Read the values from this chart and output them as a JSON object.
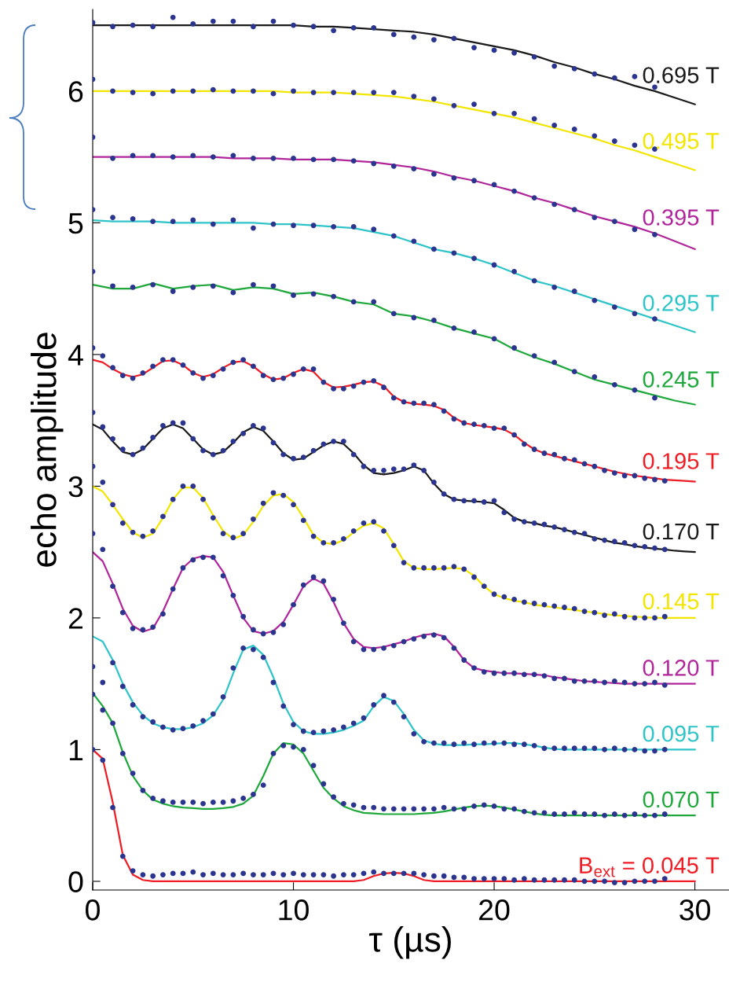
{
  "chart_data": {
    "type": "line",
    "xlabel": "τ (µs)",
    "ylabel": "echo amplitude",
    "xlim": [
      0,
      31.7
    ],
    "ylim": [
      -0.066,
      6.62
    ],
    "xticks": [
      0,
      10,
      20,
      30
    ],
    "yticks": [
      0,
      1,
      2,
      3,
      4,
      5,
      6
    ],
    "grid": false,
    "series": [
      {
        "name": "B$_{ext}$ = 0.045 T",
        "color": "#ee1c24",
        "x": [
          0,
          0.5,
          1,
          1.5,
          2,
          2.5,
          3,
          3.5,
          4,
          4.5,
          5,
          5.5,
          6,
          6.5,
          7,
          7.5,
          8,
          8.5,
          9,
          9.5,
          10,
          10.5,
          11,
          11.5,
          12,
          12.5,
          13,
          13.5,
          14,
          14.5,
          15,
          15.5,
          16,
          16.5,
          17,
          17.5,
          18,
          18.5,
          19,
          19.5,
          20,
          20.5,
          21,
          21.5,
          22,
          22.5,
          23,
          23.5,
          24,
          24.5,
          25,
          25.5,
          26,
          26.5,
          27,
          27.5,
          28,
          28.5,
          29,
          29.5,
          30
        ],
        "values": [
          1.0,
          0.93,
          0.6,
          0.2,
          0.05,
          0.01,
          0,
          0,
          0,
          0,
          0,
          0,
          0,
          0,
          0,
          0,
          0,
          0,
          0,
          0,
          0,
          0,
          0,
          0,
          0,
          0,
          0,
          0.01,
          0.04,
          0.06,
          0.065,
          0.06,
          0.04,
          0.01,
          0,
          0,
          0,
          0,
          0,
          0,
          0,
          0,
          0,
          0,
          0,
          0,
          0,
          0,
          0,
          0,
          0,
          0,
          0,
          0,
          0,
          0,
          0,
          0,
          0,
          0,
          0
        ]
      },
      {
        "type": "scatter",
        "marker": "circle",
        "color": "#2b3590",
        "x": [
          0,
          0.5,
          1,
          1.5,
          2,
          2.5,
          3,
          3.5,
          4,
          4.5,
          5,
          5.5,
          6,
          6.5,
          7,
          7.5,
          8,
          8.5,
          9,
          9.5,
          10,
          10.5,
          11,
          11.5,
          12,
          12.5,
          13,
          13.5,
          14,
          14.5,
          15,
          15.5,
          16,
          16.5,
          17,
          17.5,
          18,
          18.5,
          19,
          19.5,
          20,
          20.5,
          21,
          21.5,
          22,
          22.5,
          23,
          23.5,
          24,
          24.5,
          25,
          25.5,
          26,
          26.5,
          27,
          27.5,
          28,
          28.5
        ],
        "values": [
          1.0,
          0.92,
          0.56,
          0.19,
          0.08,
          0.05,
          0.04,
          0.05,
          0.06,
          0.06,
          0.07,
          0.05,
          0.06,
          0.05,
          0.05,
          0.06,
          0.05,
          0.05,
          0.06,
          0.05,
          0.06,
          0.05,
          0.05,
          0.05,
          0.04,
          0.05,
          0.05,
          0.06,
          0.07,
          0.06,
          0.06,
          0.06,
          0.06,
          0.05,
          0.04,
          0.04,
          0.03,
          0.03,
          0.02,
          0.02,
          0.02,
          0.02,
          0.01,
          0.02,
          0.01,
          0.01,
          0.01,
          0.01,
          0.01,
          0.0,
          0.0,
          0.0,
          -0.01,
          -0.01,
          0.0,
          0.0,
          0.0,
          0.02
        ]
      },
      {
        "name": "0.070 T",
        "color": "#1ea83c",
        "x": [
          0,
          0.5,
          1,
          1.5,
          2,
          2.5,
          3,
          3.5,
          4,
          4.5,
          5,
          5.5,
          6,
          6.5,
          7,
          7.5,
          8,
          8.5,
          9,
          9.5,
          10,
          10.5,
          11,
          11.5,
          12,
          12.5,
          13,
          13.5,
          14,
          14.5,
          15,
          15.5,
          16,
          16.5,
          17,
          17.5,
          18,
          18.5,
          19,
          19.5,
          20,
          20.5,
          21,
          21.5,
          22,
          22.5,
          23,
          23.5,
          24,
          24.5,
          25,
          25.5,
          26,
          26.5,
          27,
          27.5,
          28,
          28.5,
          29,
          29.5,
          30
        ],
        "values": [
          1.43,
          1.33,
          1.2,
          0.98,
          0.8,
          0.69,
          0.62,
          0.59,
          0.57,
          0.56,
          0.555,
          0.55,
          0.55,
          0.555,
          0.565,
          0.59,
          0.65,
          0.8,
          0.97,
          1.05,
          1.04,
          0.97,
          0.84,
          0.71,
          0.63,
          0.57,
          0.54,
          0.52,
          0.515,
          0.51,
          0.51,
          0.51,
          0.51,
          0.515,
          0.52,
          0.53,
          0.545,
          0.56,
          0.57,
          0.575,
          0.57,
          0.56,
          0.545,
          0.53,
          0.515,
          0.505,
          0.5,
          0.5,
          0.5,
          0.5,
          0.5,
          0.5,
          0.5,
          0.5,
          0.5,
          0.5,
          0.5,
          0.5,
          0.5,
          0.5,
          0.5
        ]
      },
      {
        "type": "scatter",
        "marker": "circle",
        "color": "#2b3590",
        "x": [
          0,
          0.5,
          1,
          1.5,
          2,
          2.5,
          3,
          3.5,
          4,
          4.5,
          5,
          5.5,
          6,
          6.5,
          7,
          7.5,
          8,
          8.5,
          9,
          9.5,
          10,
          10.5,
          11,
          11.5,
          12,
          12.5,
          13,
          13.5,
          14,
          14.5,
          15,
          15.5,
          16,
          16.5,
          17,
          17.5,
          18,
          18.5,
          19,
          19.5,
          20,
          20.5,
          21,
          21.5,
          22,
          22.5,
          23,
          23.5,
          24,
          24.5,
          25,
          25.5,
          26,
          26.5,
          27,
          27.5,
          28,
          28.5
        ],
        "values": [
          1.42,
          1.3,
          1.2,
          0.97,
          0.82,
          0.69,
          0.63,
          0.61,
          0.6,
          0.6,
          0.6,
          0.59,
          0.6,
          0.6,
          0.61,
          0.63,
          0.66,
          0.73,
          0.97,
          1.03,
          1.02,
          1.0,
          0.88,
          0.74,
          0.64,
          0.59,
          0.58,
          0.56,
          0.56,
          0.55,
          0.55,
          0.55,
          0.55,
          0.55,
          0.55,
          0.56,
          0.55,
          0.55,
          0.57,
          0.58,
          0.57,
          0.55,
          0.55,
          0.53,
          0.52,
          0.52,
          0.51,
          0.51,
          0.52,
          0.51,
          0.51,
          0.5,
          0.51,
          0.5,
          0.51,
          0.5,
          0.5,
          0.51
        ]
      },
      {
        "name": "0.095 T",
        "color": "#2ec4c8",
        "x": [
          0,
          0.5,
          1,
          1.5,
          2,
          2.5,
          3,
          3.5,
          4,
          4.5,
          5,
          5.5,
          6,
          6.5,
          7,
          7.5,
          8,
          8.5,
          9,
          9.5,
          10,
          10.5,
          11,
          11.5,
          12,
          12.5,
          13,
          13.5,
          14,
          14.5,
          15,
          15.5,
          16,
          16.5,
          17,
          17.5,
          18,
          18.5,
          19,
          19.5,
          20,
          20.5,
          21,
          21.5,
          22,
          22.5,
          23,
          23.5,
          24,
          24.5,
          25,
          25.5,
          26,
          26.5,
          27,
          27.5,
          28,
          28.5,
          29,
          29.5,
          30
        ],
        "values": [
          1.86,
          1.82,
          1.68,
          1.5,
          1.36,
          1.26,
          1.2,
          1.17,
          1.155,
          1.155,
          1.17,
          1.2,
          1.26,
          1.38,
          1.58,
          1.76,
          1.79,
          1.72,
          1.55,
          1.35,
          1.21,
          1.14,
          1.12,
          1.12,
          1.13,
          1.15,
          1.18,
          1.22,
          1.33,
          1.4,
          1.37,
          1.27,
          1.15,
          1.07,
          1.045,
          1.035,
          1.035,
          1.035,
          1.04,
          1.04,
          1.045,
          1.05,
          1.05,
          1.04,
          1.03,
          1.015,
          1.005,
          1.0,
          1.0,
          1.0,
          1.0,
          1.0,
          1.0,
          1.0,
          1.0,
          1.0,
          1.0,
          1.0,
          1.0,
          1.0,
          1.0
        ]
      },
      {
        "type": "scatter",
        "marker": "circle",
        "color": "#2b3590",
        "x": [
          0,
          0.5,
          1,
          1.5,
          2,
          2.5,
          3,
          3.5,
          4,
          4.5,
          5,
          5.5,
          6,
          6.5,
          7,
          7.5,
          8,
          8.5,
          9,
          9.5,
          10,
          10.5,
          11,
          11.5,
          12,
          12.5,
          13,
          13.5,
          14,
          14.5,
          15,
          15.5,
          16,
          16.5,
          17,
          17.5,
          18,
          18.5,
          19,
          19.5,
          20,
          20.5,
          21,
          21.5,
          22,
          22.5,
          23,
          23.5,
          24,
          24.5,
          25,
          25.5,
          26,
          26.5,
          27,
          27.5,
          28,
          28.5
        ],
        "values": [
          1.63,
          1.51,
          1.66,
          1.48,
          1.34,
          1.25,
          1.21,
          1.17,
          1.15,
          1.16,
          1.18,
          1.22,
          1.27,
          1.4,
          1.62,
          1.77,
          1.76,
          1.7,
          1.51,
          1.33,
          1.19,
          1.14,
          1.13,
          1.14,
          1.15,
          1.17,
          1.2,
          1.24,
          1.34,
          1.41,
          1.36,
          1.25,
          1.12,
          1.06,
          1.05,
          1.05,
          1.04,
          1.05,
          1.04,
          1.05,
          1.05,
          1.05,
          1.04,
          1.04,
          1.03,
          1.01,
          1.01,
          1.01,
          1.01,
          1.01,
          1.01,
          1.0,
          1.01,
          1.0,
          1.0,
          0.99,
          0.99,
          1.0
        ]
      },
      {
        "name": "0.120 T",
        "color": "#b0259a",
        "x": [
          0,
          0.5,
          1,
          1.5,
          2,
          2.5,
          3,
          3.5,
          4,
          4.5,
          5,
          5.5,
          6,
          6.5,
          7,
          7.5,
          8,
          8.5,
          9,
          9.5,
          10,
          10.5,
          11,
          11.5,
          12,
          12.5,
          13,
          13.5,
          14,
          14.5,
          15,
          15.5,
          16,
          16.5,
          17,
          17.5,
          18,
          18.5,
          19,
          19.5,
          20,
          20.5,
          21,
          21.5,
          22,
          22.5,
          23,
          23.5,
          24,
          24.5,
          25,
          25.5,
          26,
          26.5,
          27,
          27.5,
          28,
          28.5,
          29,
          29.5,
          30
        ],
        "values": [
          2.5,
          2.43,
          2.26,
          2.07,
          1.94,
          1.895,
          1.92,
          2.05,
          2.22,
          2.38,
          2.45,
          2.47,
          2.46,
          2.35,
          2.17,
          2.0,
          1.9,
          1.88,
          1.9,
          1.97,
          2.1,
          2.24,
          2.3,
          2.26,
          2.12,
          1.96,
          1.84,
          1.78,
          1.77,
          1.78,
          1.8,
          1.82,
          1.85,
          1.87,
          1.88,
          1.86,
          1.78,
          1.68,
          1.62,
          1.6,
          1.59,
          1.58,
          1.58,
          1.575,
          1.57,
          1.565,
          1.55,
          1.54,
          1.53,
          1.52,
          1.515,
          1.51,
          1.505,
          1.5,
          1.5,
          1.5,
          1.5,
          1.5,
          1.5,
          1.5,
          1.5
        ]
      },
      {
        "type": "scatter",
        "marker": "circle",
        "color": "#2b3590",
        "x": [
          0,
          0.5,
          1,
          1.5,
          2,
          2.5,
          3,
          3.5,
          4,
          4.5,
          5,
          5.5,
          6,
          6.5,
          7,
          7.5,
          8,
          8.5,
          9,
          9.5,
          10,
          10.5,
          11,
          11.5,
          12,
          12.5,
          13,
          13.5,
          14,
          14.5,
          15,
          15.5,
          16,
          16.5,
          17,
          17.5,
          18,
          18.5,
          19,
          19.5,
          20,
          20.5,
          21,
          21.5,
          22,
          22.5,
          23,
          23.5,
          24,
          24.5,
          25,
          25.5,
          26,
          26.5,
          27,
          27.5,
          28,
          28.5
        ],
        "values": [
          2.64,
          2.52,
          2.24,
          2.04,
          1.92,
          1.91,
          1.93,
          2.03,
          2.22,
          2.38,
          2.44,
          2.46,
          2.46,
          2.32,
          2.17,
          2.01,
          1.91,
          1.88,
          1.89,
          1.95,
          2.1,
          2.25,
          2.31,
          2.28,
          2.14,
          1.96,
          1.82,
          1.76,
          1.76,
          1.77,
          1.79,
          1.82,
          1.84,
          1.86,
          1.87,
          1.85,
          1.77,
          1.68,
          1.62,
          1.59,
          1.58,
          1.58,
          1.58,
          1.57,
          1.57,
          1.56,
          1.54,
          1.54,
          1.52,
          1.52,
          1.52,
          1.51,
          1.52,
          1.51,
          1.5,
          1.5,
          1.51,
          1.49
        ]
      },
      {
        "name": "0.145 T",
        "color": "#f2e600",
        "x": [
          0,
          0.5,
          1,
          1.5,
          2,
          2.5,
          3,
          3.5,
          4,
          4.5,
          5,
          5.5,
          6,
          6.5,
          7,
          7.5,
          8,
          8.5,
          9,
          9.5,
          10,
          10.5,
          11,
          11.5,
          12,
          12.5,
          13,
          13.5,
          14,
          14.5,
          15,
          15.5,
          16,
          16.5,
          17,
          17.5,
          18,
          18.5,
          19,
          19.5,
          20,
          20.5,
          21,
          21.5,
          22,
          22.5,
          23,
          23.5,
          24,
          24.5,
          25,
          25.5,
          26,
          26.5,
          27,
          27.5,
          28,
          28.5,
          29,
          29.5,
          30
        ],
        "values": [
          3.0,
          2.96,
          2.86,
          2.75,
          2.65,
          2.61,
          2.64,
          2.76,
          2.9,
          2.99,
          2.99,
          2.91,
          2.78,
          2.66,
          2.6,
          2.63,
          2.73,
          2.85,
          2.93,
          2.94,
          2.88,
          2.76,
          2.63,
          2.57,
          2.56,
          2.59,
          2.65,
          2.7,
          2.72,
          2.68,
          2.56,
          2.43,
          2.38,
          2.37,
          2.37,
          2.375,
          2.38,
          2.37,
          2.32,
          2.24,
          2.18,
          2.15,
          2.13,
          2.12,
          2.1,
          2.09,
          2.08,
          2.07,
          2.06,
          2.05,
          2.04,
          2.03,
          2.02,
          2.015,
          2.01,
          2.005,
          2.0,
          2.0,
          2.0,
          2.0,
          2.0
        ]
      },
      {
        "type": "scatter",
        "marker": "circle",
        "color": "#2b3590",
        "x": [
          0,
          0.5,
          1,
          1.5,
          2,
          2.5,
          3,
          3.5,
          4,
          4.5,
          5,
          5.5,
          6,
          6.5,
          7,
          7.5,
          8,
          8.5,
          9,
          9.5,
          10,
          10.5,
          11,
          11.5,
          12,
          12.5,
          13,
          13.5,
          14,
          14.5,
          15,
          15.5,
          16,
          16.5,
          17,
          17.5,
          18,
          18.5,
          19,
          19.5,
          20,
          20.5,
          21,
          21.5,
          22,
          22.5,
          23,
          23.5,
          24,
          24.5,
          25,
          25.5,
          26,
          26.5,
          27,
          27.5,
          28,
          28.5
        ],
        "values": [
          3.15,
          3.03,
          2.86,
          2.72,
          2.65,
          2.62,
          2.66,
          2.77,
          2.9,
          3.0,
          3.0,
          2.9,
          2.76,
          2.64,
          2.61,
          2.64,
          2.75,
          2.87,
          2.95,
          2.93,
          2.86,
          2.74,
          2.62,
          2.57,
          2.57,
          2.6,
          2.66,
          2.72,
          2.73,
          2.66,
          2.55,
          2.42,
          2.38,
          2.38,
          2.38,
          2.38,
          2.39,
          2.37,
          2.31,
          2.24,
          2.18,
          2.16,
          2.14,
          2.12,
          2.11,
          2.1,
          2.09,
          2.08,
          2.07,
          2.05,
          2.04,
          2.02,
          2.03,
          2.01,
          2.0,
          2.0,
          2.0,
          2.01
        ]
      },
      {
        "name": "0.170 T",
        "color": "#1a1a1a",
        "x": [
          0,
          0.5,
          1,
          1.5,
          2,
          2.5,
          3,
          3.5,
          4,
          4.5,
          5,
          5.5,
          6,
          6.5,
          7,
          7.5,
          8,
          8.5,
          9,
          9.5,
          10,
          10.5,
          11,
          11.5,
          12,
          12.5,
          13,
          13.5,
          14,
          14.5,
          15,
          15.5,
          16,
          16.5,
          17,
          17.5,
          18,
          18.5,
          19,
          19.5,
          20,
          20.5,
          21,
          21.5,
          22,
          22.5,
          23,
          23.5,
          24,
          24.5,
          25,
          25.5,
          26,
          26.5,
          27,
          27.5,
          28,
          28.5,
          29,
          29.5,
          30
        ],
        "values": [
          3.47,
          3.43,
          3.34,
          3.26,
          3.24,
          3.28,
          3.36,
          3.44,
          3.47,
          3.44,
          3.36,
          3.28,
          3.24,
          3.26,
          3.33,
          3.41,
          3.45,
          3.42,
          3.34,
          3.25,
          3.2,
          3.21,
          3.26,
          3.31,
          3.34,
          3.32,
          3.25,
          3.16,
          3.1,
          3.09,
          3.1,
          3.12,
          3.15,
          3.12,
          3.02,
          2.94,
          2.9,
          2.89,
          2.885,
          2.88,
          2.87,
          2.82,
          2.76,
          2.73,
          2.72,
          2.7,
          2.69,
          2.67,
          2.65,
          2.63,
          2.61,
          2.59,
          2.57,
          2.56,
          2.545,
          2.535,
          2.525,
          2.52,
          2.51,
          2.505,
          2.5
        ]
      },
      {
        "type": "scatter",
        "marker": "circle",
        "color": "#2b3590",
        "x": [
          0,
          0.5,
          1,
          1.5,
          2,
          2.5,
          3,
          3.5,
          4,
          4.5,
          5,
          5.5,
          6,
          6.5,
          7,
          7.5,
          8,
          8.5,
          9,
          9.5,
          10,
          10.5,
          11,
          11.5,
          12,
          12.5,
          13,
          13.5,
          14,
          14.5,
          15,
          15.5,
          16,
          16.5,
          17,
          17.5,
          18,
          18.5,
          19,
          19.5,
          20,
          20.5,
          21,
          21.5,
          22,
          22.5,
          23,
          23.5,
          24,
          24.5,
          25,
          25.5,
          26,
          26.5,
          27,
          27.5,
          28,
          28.5
        ],
        "values": [
          3.56,
          3.45,
          3.36,
          3.28,
          3.24,
          3.29,
          3.37,
          3.46,
          3.48,
          3.48,
          3.36,
          3.27,
          3.24,
          3.27,
          3.34,
          3.4,
          3.46,
          3.44,
          3.33,
          3.24,
          3.21,
          3.22,
          3.27,
          3.32,
          3.34,
          3.34,
          3.24,
          3.15,
          3.12,
          3.12,
          3.13,
          3.13,
          3.16,
          3.12,
          3.03,
          2.94,
          2.9,
          2.89,
          2.89,
          2.88,
          2.89,
          2.8,
          2.75,
          2.73,
          2.72,
          2.71,
          2.69,
          2.67,
          2.65,
          2.64,
          2.6,
          2.59,
          2.58,
          2.57,
          2.55,
          2.54,
          2.53,
          2.52
        ]
      },
      {
        "name": "0.195 T",
        "color": "#ee1c24",
        "x": [
          0,
          0.5,
          1,
          1.5,
          2,
          2.5,
          3,
          3.5,
          4,
          4.5,
          5,
          5.5,
          6,
          6.5,
          7,
          7.5,
          8,
          8.5,
          9,
          9.5,
          10,
          10.5,
          11,
          11.5,
          12,
          12.5,
          13,
          13.5,
          14,
          14.5,
          15,
          15.5,
          16,
          16.5,
          17,
          17.5,
          18,
          18.5,
          19,
          19.5,
          20,
          20.5,
          21,
          21.5,
          22,
          22.5,
          23,
          23.5,
          24,
          24.5,
          25,
          25.5,
          26,
          26.5,
          27,
          27.5,
          28,
          28.5,
          29,
          29.5,
          30
        ],
        "values": [
          3.96,
          3.94,
          3.89,
          3.85,
          3.83,
          3.85,
          3.9,
          3.95,
          3.955,
          3.92,
          3.86,
          3.83,
          3.85,
          3.9,
          3.94,
          3.95,
          3.91,
          3.85,
          3.81,
          3.82,
          3.86,
          3.89,
          3.87,
          3.79,
          3.75,
          3.755,
          3.77,
          3.79,
          3.795,
          3.76,
          3.68,
          3.64,
          3.625,
          3.62,
          3.61,
          3.58,
          3.52,
          3.48,
          3.465,
          3.455,
          3.445,
          3.43,
          3.39,
          3.33,
          3.28,
          3.25,
          3.23,
          3.21,
          3.19,
          3.17,
          3.15,
          3.13,
          3.11,
          3.095,
          3.08,
          3.07,
          3.06,
          3.05,
          3.045,
          3.04,
          3.035
        ]
      },
      {
        "type": "scatter",
        "marker": "circle",
        "color": "#2b3590",
        "x": [
          0,
          0.5,
          1,
          1.5,
          2,
          2.5,
          3,
          3.5,
          4,
          4.5,
          5,
          5.5,
          6,
          6.5,
          7,
          7.5,
          8,
          8.5,
          9,
          9.5,
          10,
          10.5,
          11,
          11.5,
          12,
          12.5,
          13,
          13.5,
          14,
          14.5,
          15,
          15.5,
          16,
          16.5,
          17,
          17.5,
          18,
          18.5,
          19,
          19.5,
          20,
          20.5,
          21,
          21.5,
          22,
          22.5,
          23,
          23.5,
          24,
          24.5,
          25,
          25.5,
          26,
          26.5,
          27,
          27.5,
          28,
          28.5
        ],
        "values": [
          4.05,
          3.99,
          3.9,
          3.84,
          3.82,
          3.86,
          3.91,
          3.96,
          3.96,
          3.92,
          3.86,
          3.82,
          3.84,
          3.89,
          3.94,
          3.96,
          3.91,
          3.84,
          3.81,
          3.82,
          3.85,
          3.89,
          3.89,
          3.79,
          3.74,
          3.74,
          3.76,
          3.79,
          3.8,
          3.75,
          3.67,
          3.64,
          3.63,
          3.63,
          3.62,
          3.57,
          3.51,
          3.48,
          3.47,
          3.46,
          3.44,
          3.44,
          3.39,
          3.32,
          3.28,
          3.25,
          3.24,
          3.21,
          3.2,
          3.17,
          3.15,
          3.12,
          3.1,
          3.08,
          3.08,
          3.06,
          3.05,
          3.04
        ]
      },
      {
        "name": "0.245 T",
        "color": "#1ea83c",
        "x": [
          0,
          1,
          2,
          3,
          4,
          5,
          6,
          7,
          8,
          9,
          10,
          11,
          12,
          13,
          14,
          15,
          16,
          17,
          18,
          19,
          20,
          21,
          22,
          23,
          24,
          25,
          26,
          27,
          28,
          29,
          30
        ],
        "values": [
          4.53,
          4.5,
          4.5,
          4.54,
          4.5,
          4.52,
          4.53,
          4.49,
          4.51,
          4.5,
          4.46,
          4.47,
          4.44,
          4.4,
          4.38,
          4.31,
          4.29,
          4.25,
          4.2,
          4.16,
          4.12,
          4.04,
          3.98,
          3.93,
          3.87,
          3.81,
          3.77,
          3.73,
          3.69,
          3.65,
          3.62
        ]
      },
      {
        "type": "scatter",
        "marker": "circle",
        "color": "#2b3590",
        "x": [
          0,
          1,
          2,
          3,
          4,
          5,
          6,
          7,
          8,
          9,
          10,
          11,
          12,
          13,
          14,
          15,
          16,
          17,
          18,
          19,
          20,
          21,
          22,
          23,
          24,
          25,
          26,
          27,
          28
        ],
        "values": [
          4.63,
          4.52,
          4.51,
          4.53,
          4.48,
          4.51,
          4.52,
          4.47,
          4.53,
          4.52,
          4.45,
          4.46,
          4.44,
          4.4,
          4.4,
          4.31,
          4.28,
          4.26,
          4.2,
          4.17,
          4.12,
          4.05,
          3.99,
          3.94,
          3.87,
          3.83,
          3.77,
          3.73,
          3.67
        ]
      },
      {
        "name": "0.295 T",
        "color": "#2ec4c8",
        "x": [
          0,
          1,
          2,
          3,
          4,
          5,
          6,
          7,
          8,
          9,
          10,
          11,
          12,
          13,
          14,
          15,
          16,
          17,
          18,
          19,
          20,
          21,
          22,
          23,
          24,
          25,
          26,
          27,
          28,
          29,
          30
        ],
        "values": [
          5.02,
          5.01,
          5.01,
          5.01,
          5.0,
          5.0,
          5.0,
          5.0,
          5.0,
          4.99,
          4.99,
          4.98,
          4.97,
          4.96,
          4.93,
          4.9,
          4.85,
          4.8,
          4.77,
          4.73,
          4.68,
          4.62,
          4.56,
          4.52,
          4.47,
          4.42,
          4.37,
          4.32,
          4.27,
          4.22,
          4.17
        ]
      },
      {
        "type": "scatter",
        "marker": "circle",
        "color": "#2b3590",
        "x": [
          0,
          1,
          2,
          3,
          4,
          5,
          6,
          7,
          8,
          9,
          10,
          11,
          12,
          13,
          14,
          15,
          16,
          17,
          18,
          19,
          20,
          21,
          22,
          23,
          24,
          25,
          26,
          27,
          28
        ],
        "values": [
          5.1,
          5.04,
          5.03,
          5.01,
          5.01,
          5.02,
          4.99,
          5.02,
          4.96,
          4.99,
          4.98,
          4.98,
          4.97,
          4.97,
          4.95,
          4.9,
          4.86,
          4.8,
          4.77,
          4.73,
          4.68,
          4.63,
          4.56,
          4.51,
          4.48,
          4.41,
          4.36,
          4.31,
          4.27
        ]
      },
      {
        "name": "0.395 T",
        "color": "#b0259a",
        "x": [
          0,
          1,
          2,
          3,
          4,
          5,
          6,
          7,
          8,
          9,
          10,
          11,
          12,
          13,
          14,
          15,
          16,
          17,
          18,
          19,
          20,
          21,
          22,
          23,
          24,
          25,
          26,
          27,
          28,
          29,
          30
        ],
        "values": [
          5.5,
          5.5,
          5.5,
          5.5,
          5.5,
          5.5,
          5.5,
          5.49,
          5.49,
          5.49,
          5.48,
          5.48,
          5.48,
          5.47,
          5.46,
          5.44,
          5.42,
          5.39,
          5.35,
          5.32,
          5.28,
          5.24,
          5.19,
          5.15,
          5.1,
          5.05,
          5.01,
          4.97,
          4.92,
          4.86,
          4.8
        ]
      },
      {
        "type": "scatter",
        "marker": "circle",
        "color": "#2b3590",
        "x": [
          0,
          1,
          2,
          3,
          4,
          5,
          6,
          7,
          8,
          9,
          10,
          11,
          12,
          13,
          14,
          15,
          16,
          17,
          18,
          19,
          20,
          21,
          22,
          23,
          24,
          25,
          26,
          27,
          28
        ],
        "values": [
          5.65,
          5.49,
          5.51,
          5.51,
          5.5,
          5.51,
          5.5,
          5.51,
          5.49,
          5.49,
          5.49,
          5.48,
          5.48,
          5.47,
          5.45,
          5.43,
          5.41,
          5.37,
          5.34,
          5.32,
          5.29,
          5.24,
          5.19,
          5.14,
          5.1,
          5.04,
          5.01,
          4.95,
          4.91
        ]
      },
      {
        "name": "0.495 T",
        "color": "#f2e600",
        "x": [
          0,
          1,
          2,
          3,
          4,
          5,
          6,
          7,
          8,
          9,
          10,
          11,
          12,
          13,
          14,
          15,
          16,
          17,
          18,
          19,
          20,
          21,
          22,
          23,
          24,
          25,
          26,
          27,
          28,
          29,
          30
        ],
        "values": [
          6.0,
          6.0,
          6.0,
          6.0,
          6.0,
          6.0,
          6.0,
          6.0,
          6.0,
          6.0,
          5.99,
          5.99,
          5.99,
          5.98,
          5.97,
          5.96,
          5.94,
          5.92,
          5.89,
          5.86,
          5.83,
          5.8,
          5.76,
          5.72,
          5.68,
          5.64,
          5.59,
          5.55,
          5.5,
          5.45,
          5.4
        ]
      },
      {
        "type": "scatter",
        "marker": "circle",
        "color": "#2b3590",
        "x": [
          0,
          1,
          2,
          3,
          4,
          5,
          6,
          7,
          8,
          9,
          10,
          11,
          12,
          13,
          14,
          15,
          16,
          17,
          18,
          19,
          20,
          21,
          22,
          23,
          24,
          25,
          26,
          27,
          28
        ],
        "values": [
          6.09,
          6.0,
          5.99,
          5.98,
          6.0,
          6.0,
          6.01,
          6.0,
          6.0,
          5.98,
          6.0,
          5.99,
          5.99,
          5.99,
          5.99,
          5.99,
          5.96,
          5.94,
          5.89,
          5.9,
          5.83,
          5.83,
          5.79,
          5.74,
          5.71,
          5.66,
          5.62,
          5.59,
          5.56
        ]
      },
      {
        "name": "0.695 T",
        "color": "#1a1a1a",
        "x": [
          0,
          1,
          2,
          3,
          4,
          5,
          6,
          7,
          8,
          9,
          10,
          11,
          12,
          13,
          14,
          15,
          16,
          17,
          18,
          19,
          20,
          21,
          22,
          23,
          24,
          25,
          26,
          27,
          28,
          29,
          30
        ],
        "values": [
          6.5,
          6.5,
          6.5,
          6.5,
          6.5,
          6.5,
          6.5,
          6.5,
          6.5,
          6.5,
          6.5,
          6.49,
          6.49,
          6.48,
          6.47,
          6.46,
          6.45,
          6.43,
          6.4,
          6.37,
          6.34,
          6.31,
          6.27,
          6.22,
          6.18,
          6.13,
          6.09,
          6.04,
          6.0,
          5.95,
          5.9
        ]
      },
      {
        "type": "scatter",
        "marker": "circle",
        "color": "#2b3590",
        "x": [
          0,
          1,
          2,
          3,
          4,
          5,
          6,
          7,
          8,
          9,
          10,
          11,
          12,
          13,
          14,
          15,
          16,
          17,
          18,
          19,
          20,
          21,
          22,
          23,
          24,
          25,
          26,
          27,
          28
        ],
        "values": [
          6.52,
          6.49,
          6.5,
          6.49,
          6.56,
          6.51,
          6.53,
          6.53,
          6.49,
          6.53,
          6.5,
          6.49,
          6.46,
          6.48,
          6.48,
          6.43,
          6.41,
          6.39,
          6.4,
          6.33,
          6.31,
          6.29,
          6.26,
          6.19,
          6.17,
          6.13,
          6.1,
          6.11,
          6.03
        ]
      }
    ]
  }
}
